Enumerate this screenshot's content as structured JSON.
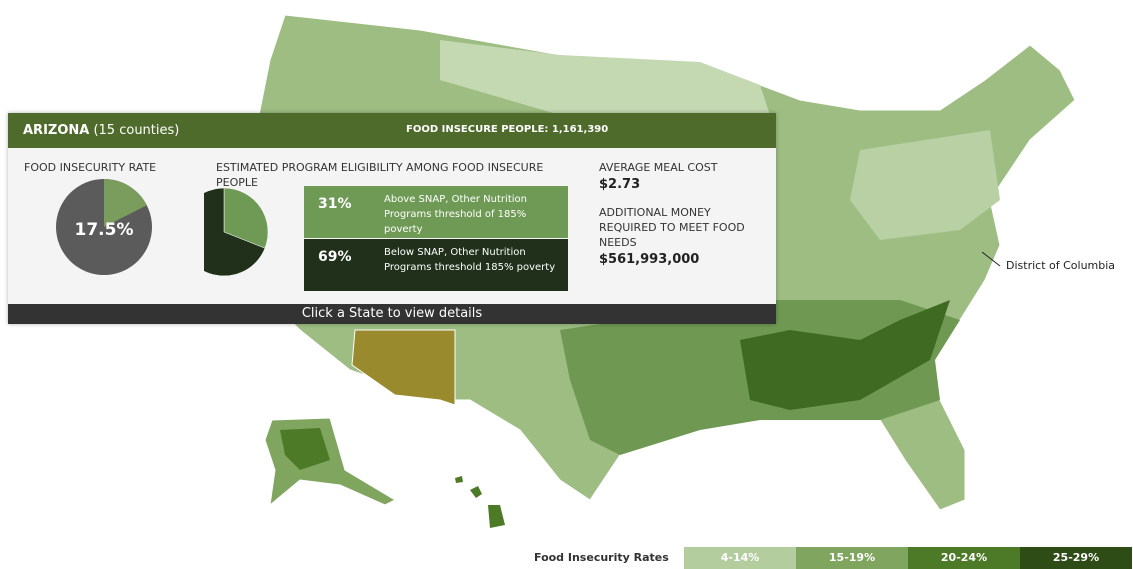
{
  "panel": {
    "state": "ARIZONA",
    "counties": "(15 counties)",
    "people_label": "FOOD INSECURE PEOPLE: 1,161,390",
    "rate_title": "FOOD INSECURITY RATE",
    "rate_value": 17.5,
    "rate_label": "17.5%",
    "eligibility_title": "ESTIMATED PROGRAM ELIGIBILITY AMONG FOOD INSECURE PEOPLE",
    "eligibility": [
      {
        "value": 31,
        "label": "31%",
        "text": "Above SNAP, Other Nutrition Programs threshold of 185% poverty",
        "color": "#6f9a55"
      },
      {
        "value": 69,
        "label": "69%",
        "text": "Below SNAP, Other Nutrition Programs threshold 185% poverty",
        "color": "#20301a"
      }
    ],
    "meal_title": "AVERAGE MEAL COST",
    "meal_cost": "$2.73",
    "money_title": "ADDITIONAL MONEY REQUIRED TO MEET FOOD NEEDS",
    "money": "$561,993,000",
    "footer": "Click a State to view details"
  },
  "map_label": "District of Columbia",
  "legend": {
    "title": "Food Insecurity Rates",
    "items": [
      {
        "label": "4-14%",
        "color": "#b4cd9f"
      },
      {
        "label": "15-19%",
        "color": "#7fa55f"
      },
      {
        "label": "20-24%",
        "color": "#4d7a27"
      },
      {
        "label": "25-29%",
        "color": "#2e4c16"
      }
    ]
  }
}
